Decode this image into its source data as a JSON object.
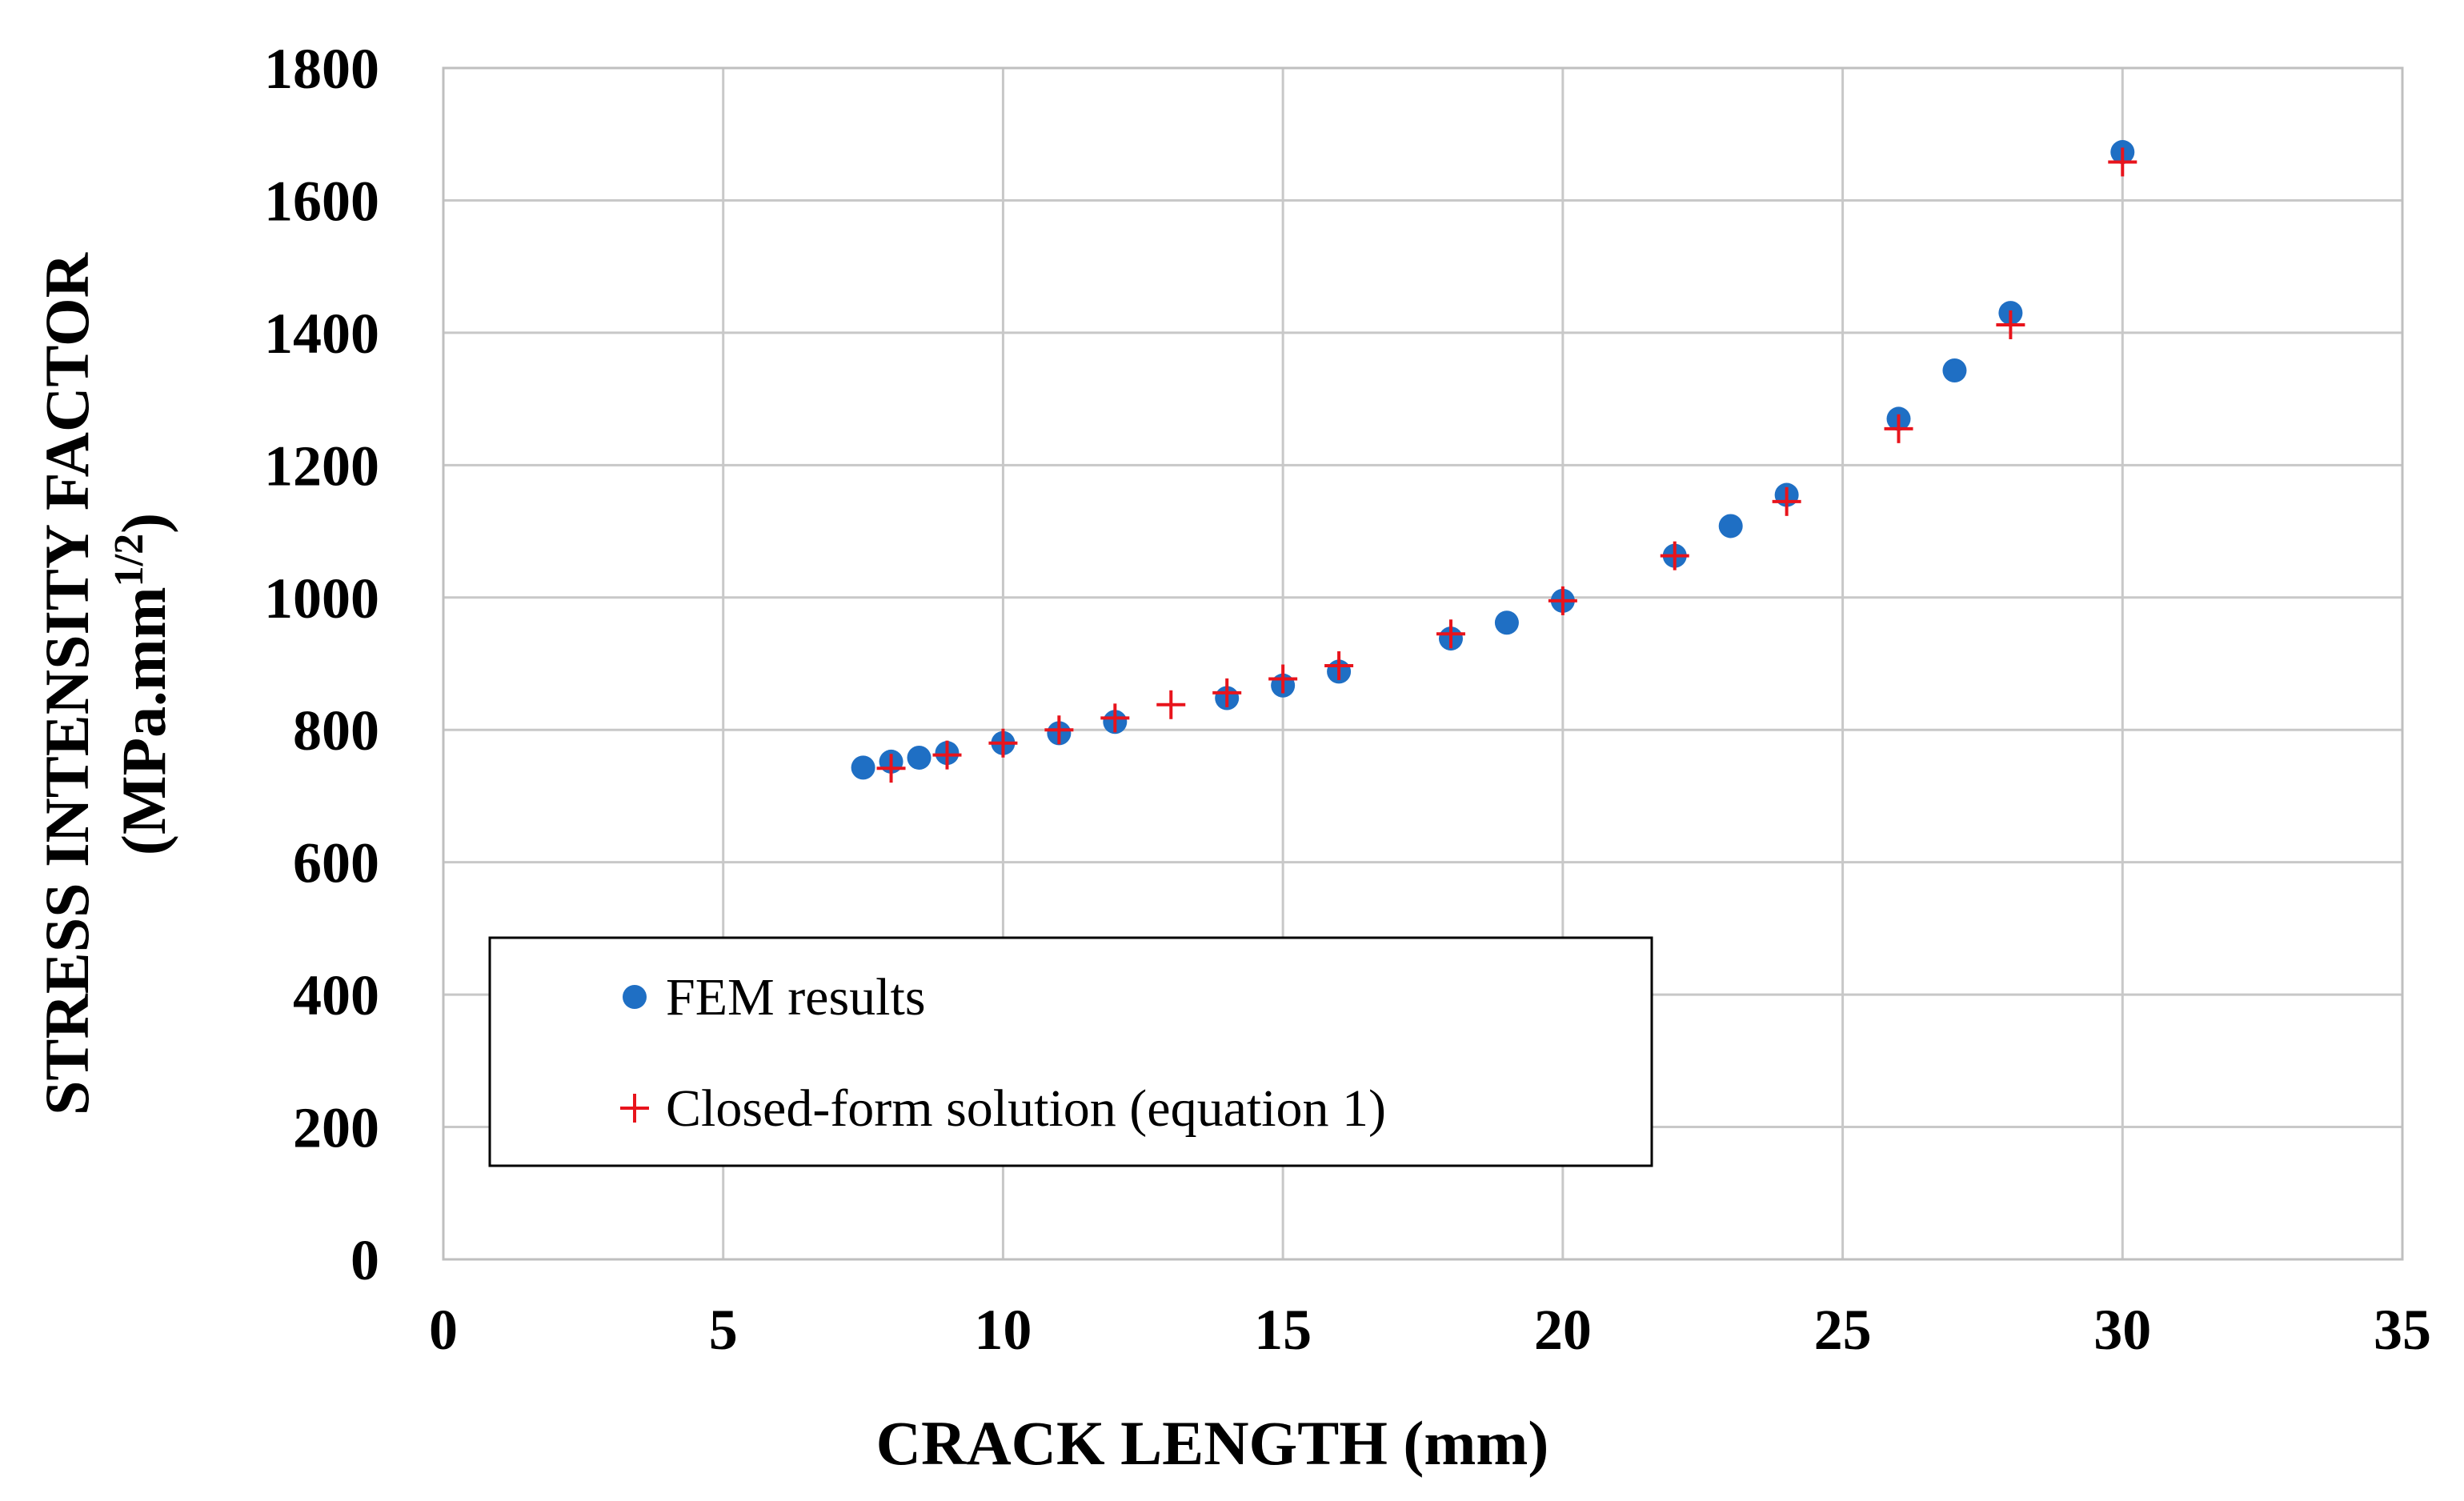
{
  "chart_data": {
    "type": "scatter",
    "xlabel": "CRACK LENGTH (mm)",
    "ylabel_line1": "STRESS INTENSITY FACTOR",
    "ylabel_line2_base": "(MPa.mm",
    "ylabel_line2_sup": "1/2",
    "ylabel_line2_end": ")",
    "xlim": [
      0,
      35
    ],
    "ylim": [
      0,
      1800
    ],
    "xticks": [
      0,
      5,
      10,
      15,
      20,
      25,
      30,
      35
    ],
    "yticks": [
      0,
      200,
      400,
      600,
      800,
      1000,
      1200,
      1400,
      1600,
      1800
    ],
    "grid": true,
    "legend_position": "lower-left",
    "series": [
      {
        "name": "FEM results",
        "marker": "circle",
        "color": "#1f6fc4",
        "points": [
          [
            7.5,
            743
          ],
          [
            8,
            752
          ],
          [
            8.5,
            758
          ],
          [
            9,
            765
          ],
          [
            10,
            780
          ],
          [
            11,
            795
          ],
          [
            12,
            812
          ],
          [
            14,
            848
          ],
          [
            15,
            867
          ],
          [
            16,
            888
          ],
          [
            18,
            938
          ],
          [
            19,
            962
          ],
          [
            20,
            995
          ],
          [
            22,
            1063
          ],
          [
            23,
            1108
          ],
          [
            24,
            1155
          ],
          [
            26,
            1270
          ],
          [
            27,
            1343
          ],
          [
            28,
            1430
          ],
          [
            30,
            1673
          ]
        ]
      },
      {
        "name": "Closed-form solution (equation 1)",
        "marker": "plus",
        "color": "#e8141c",
        "points": [
          [
            8,
            742
          ],
          [
            9,
            762
          ],
          [
            10,
            780
          ],
          [
            11,
            800
          ],
          [
            12,
            818
          ],
          [
            13,
            838
          ],
          [
            14,
            856
          ],
          [
            15,
            877
          ],
          [
            16,
            897
          ],
          [
            18,
            945
          ],
          [
            20,
            995
          ],
          [
            22,
            1063
          ],
          [
            24,
            1145
          ],
          [
            26,
            1255
          ],
          [
            28,
            1412
          ],
          [
            30,
            1658
          ]
        ]
      }
    ]
  }
}
